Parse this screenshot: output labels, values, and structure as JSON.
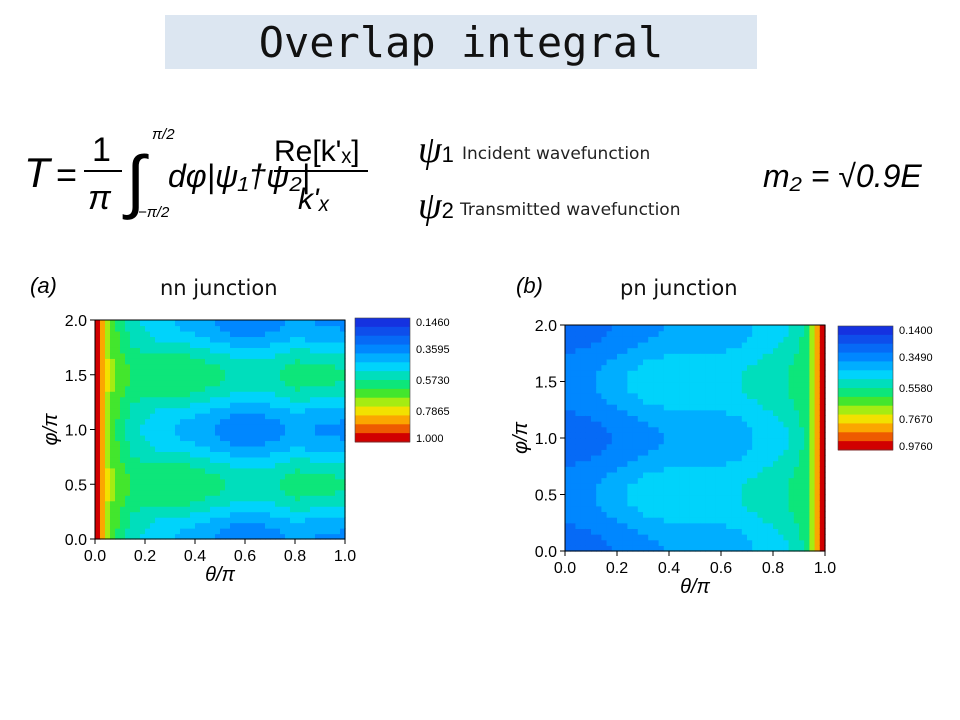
{
  "slide": {
    "title": "Overlap integral"
  },
  "formula": {
    "lhs": "T",
    "prefactor_num": "1",
    "prefactor_den": "π",
    "upper_limit": "π/2",
    "lower_limit": "−π/2",
    "integrand": "dφ|ψ₁†ψ₂|",
    "ratio_num": "Re[k'ₓ]",
    "ratio_den": "k'ₓ"
  },
  "legend": [
    {
      "symbol": "ψ",
      "sub": "1",
      "text": "Incident wavefunction"
    },
    {
      "symbol": "ψ",
      "sub": "2",
      "text": "Transmitted wavefunction"
    }
  ],
  "mass_formula": "m₂ = √0.9E",
  "chart_data": [
    {
      "type": "heatmap",
      "panel_label": "(a)",
      "title": "nn junction",
      "xlabel": "θ/π",
      "ylabel": "φ/π",
      "xlim": [
        0.0,
        1.0
      ],
      "ylim": [
        0.0,
        2.0
      ],
      "xticks": [
        "0.0",
        "0.2",
        "0.4",
        "0.6",
        "0.8",
        "1.0"
      ],
      "yticks": [
        "0.0",
        "0.5",
        "1.0",
        "1.5",
        "2.0"
      ],
      "colorbar": [
        "0.1460",
        "0.3595",
        "0.5730",
        "0.7865",
        "1.000"
      ],
      "zrange": [
        0.146,
        1.0
      ],
      "colors": {
        "low": "#1532e0",
        "high": "#d10000"
      },
      "nodes_theta": [
        0.0,
        0.06,
        0.15,
        0.25,
        0.38,
        0.5,
        0.6,
        0.68,
        0.8,
        0.9,
        1.0
      ],
      "profile": [
        1.0,
        0.62,
        0.45,
        0.38,
        0.33,
        0.27,
        0.22,
        0.25,
        0.3,
        0.28,
        0.27
      ],
      "modulation": [
        0.0,
        0.05,
        0.1,
        0.17,
        0.24,
        0.24,
        0.25,
        0.22,
        0.24,
        0.24,
        0.24
      ]
    },
    {
      "type": "heatmap",
      "panel_label": "(b)",
      "title": "pn junction",
      "xlabel": "θ/π",
      "ylabel": "φ/π",
      "xlim": [
        0.0,
        1.0
      ],
      "ylim": [
        0.0,
        2.0
      ],
      "xticks": [
        "0.0",
        "0.2",
        "0.4",
        "0.6",
        "0.8",
        "1.0"
      ],
      "yticks": [
        "0.0",
        "0.5",
        "1.0",
        "1.5",
        "2.0"
      ],
      "colorbar": [
        "0.1400",
        "0.3490",
        "0.5580",
        "0.7670",
        "0.9760"
      ],
      "zrange": [
        0.14,
        0.976
      ],
      "colors": {
        "low": "#1532e0",
        "high": "#d10000"
      },
      "nodes_theta": [
        0.0,
        0.1,
        0.2,
        0.32,
        0.45,
        0.55,
        0.65,
        0.75,
        0.85,
        0.93,
        1.0
      ],
      "profile": [
        0.18,
        0.19,
        0.22,
        0.27,
        0.3,
        0.3,
        0.32,
        0.37,
        0.42,
        0.52,
        1.0
      ],
      "modulation": [
        0.06,
        0.09,
        0.12,
        0.13,
        0.12,
        0.11,
        0.1,
        0.09,
        0.08,
        0.05,
        0.0
      ]
    }
  ]
}
